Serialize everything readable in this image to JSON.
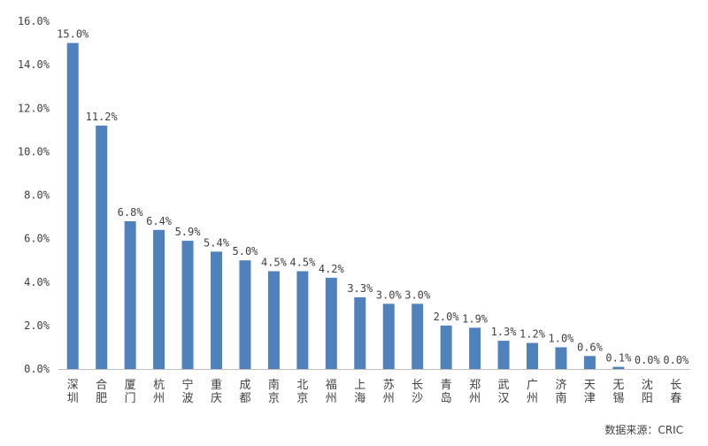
{
  "chart_data": {
    "type": "bar",
    "categories": [
      "深圳",
      "合肥",
      "厦门",
      "杭州",
      "宁波",
      "重庆",
      "成都",
      "南京",
      "北京",
      "福州",
      "上海",
      "苏州",
      "长沙",
      "青岛",
      "郑州",
      "武汉",
      "广州",
      "济南",
      "天津",
      "无锡",
      "沈阳",
      "长春"
    ],
    "values": [
      15.0,
      11.2,
      6.8,
      6.4,
      5.9,
      5.4,
      5.0,
      4.5,
      4.5,
      4.2,
      3.3,
      3.0,
      3.0,
      2.0,
      1.9,
      1.3,
      1.2,
      1.0,
      0.6,
      0.1,
      0.0,
      0.0
    ],
    "data_labels": [
      "15.0%",
      "11.2%",
      "6.8%",
      "6.4%",
      "5.9%",
      "5.4%",
      "5.0%",
      "4.5%",
      "4.5%",
      "4.2%",
      "3.3%",
      "3.0%",
      "3.0%",
      "2.0%",
      "1.9%",
      "1.3%",
      "1.2%",
      "1.0%",
      "0.6%",
      "0.1%",
      "0.0%",
      "0.0%"
    ],
    "y_ticks": [
      "0.0%",
      "2.0%",
      "4.0%",
      "6.0%",
      "8.0%",
      "10.0%",
      "12.0%",
      "14.0%",
      "16.0%"
    ],
    "ylim": [
      0,
      16
    ],
    "grid": false,
    "bar_color": "#4F81BD"
  },
  "source": "数据来源：CRIC"
}
